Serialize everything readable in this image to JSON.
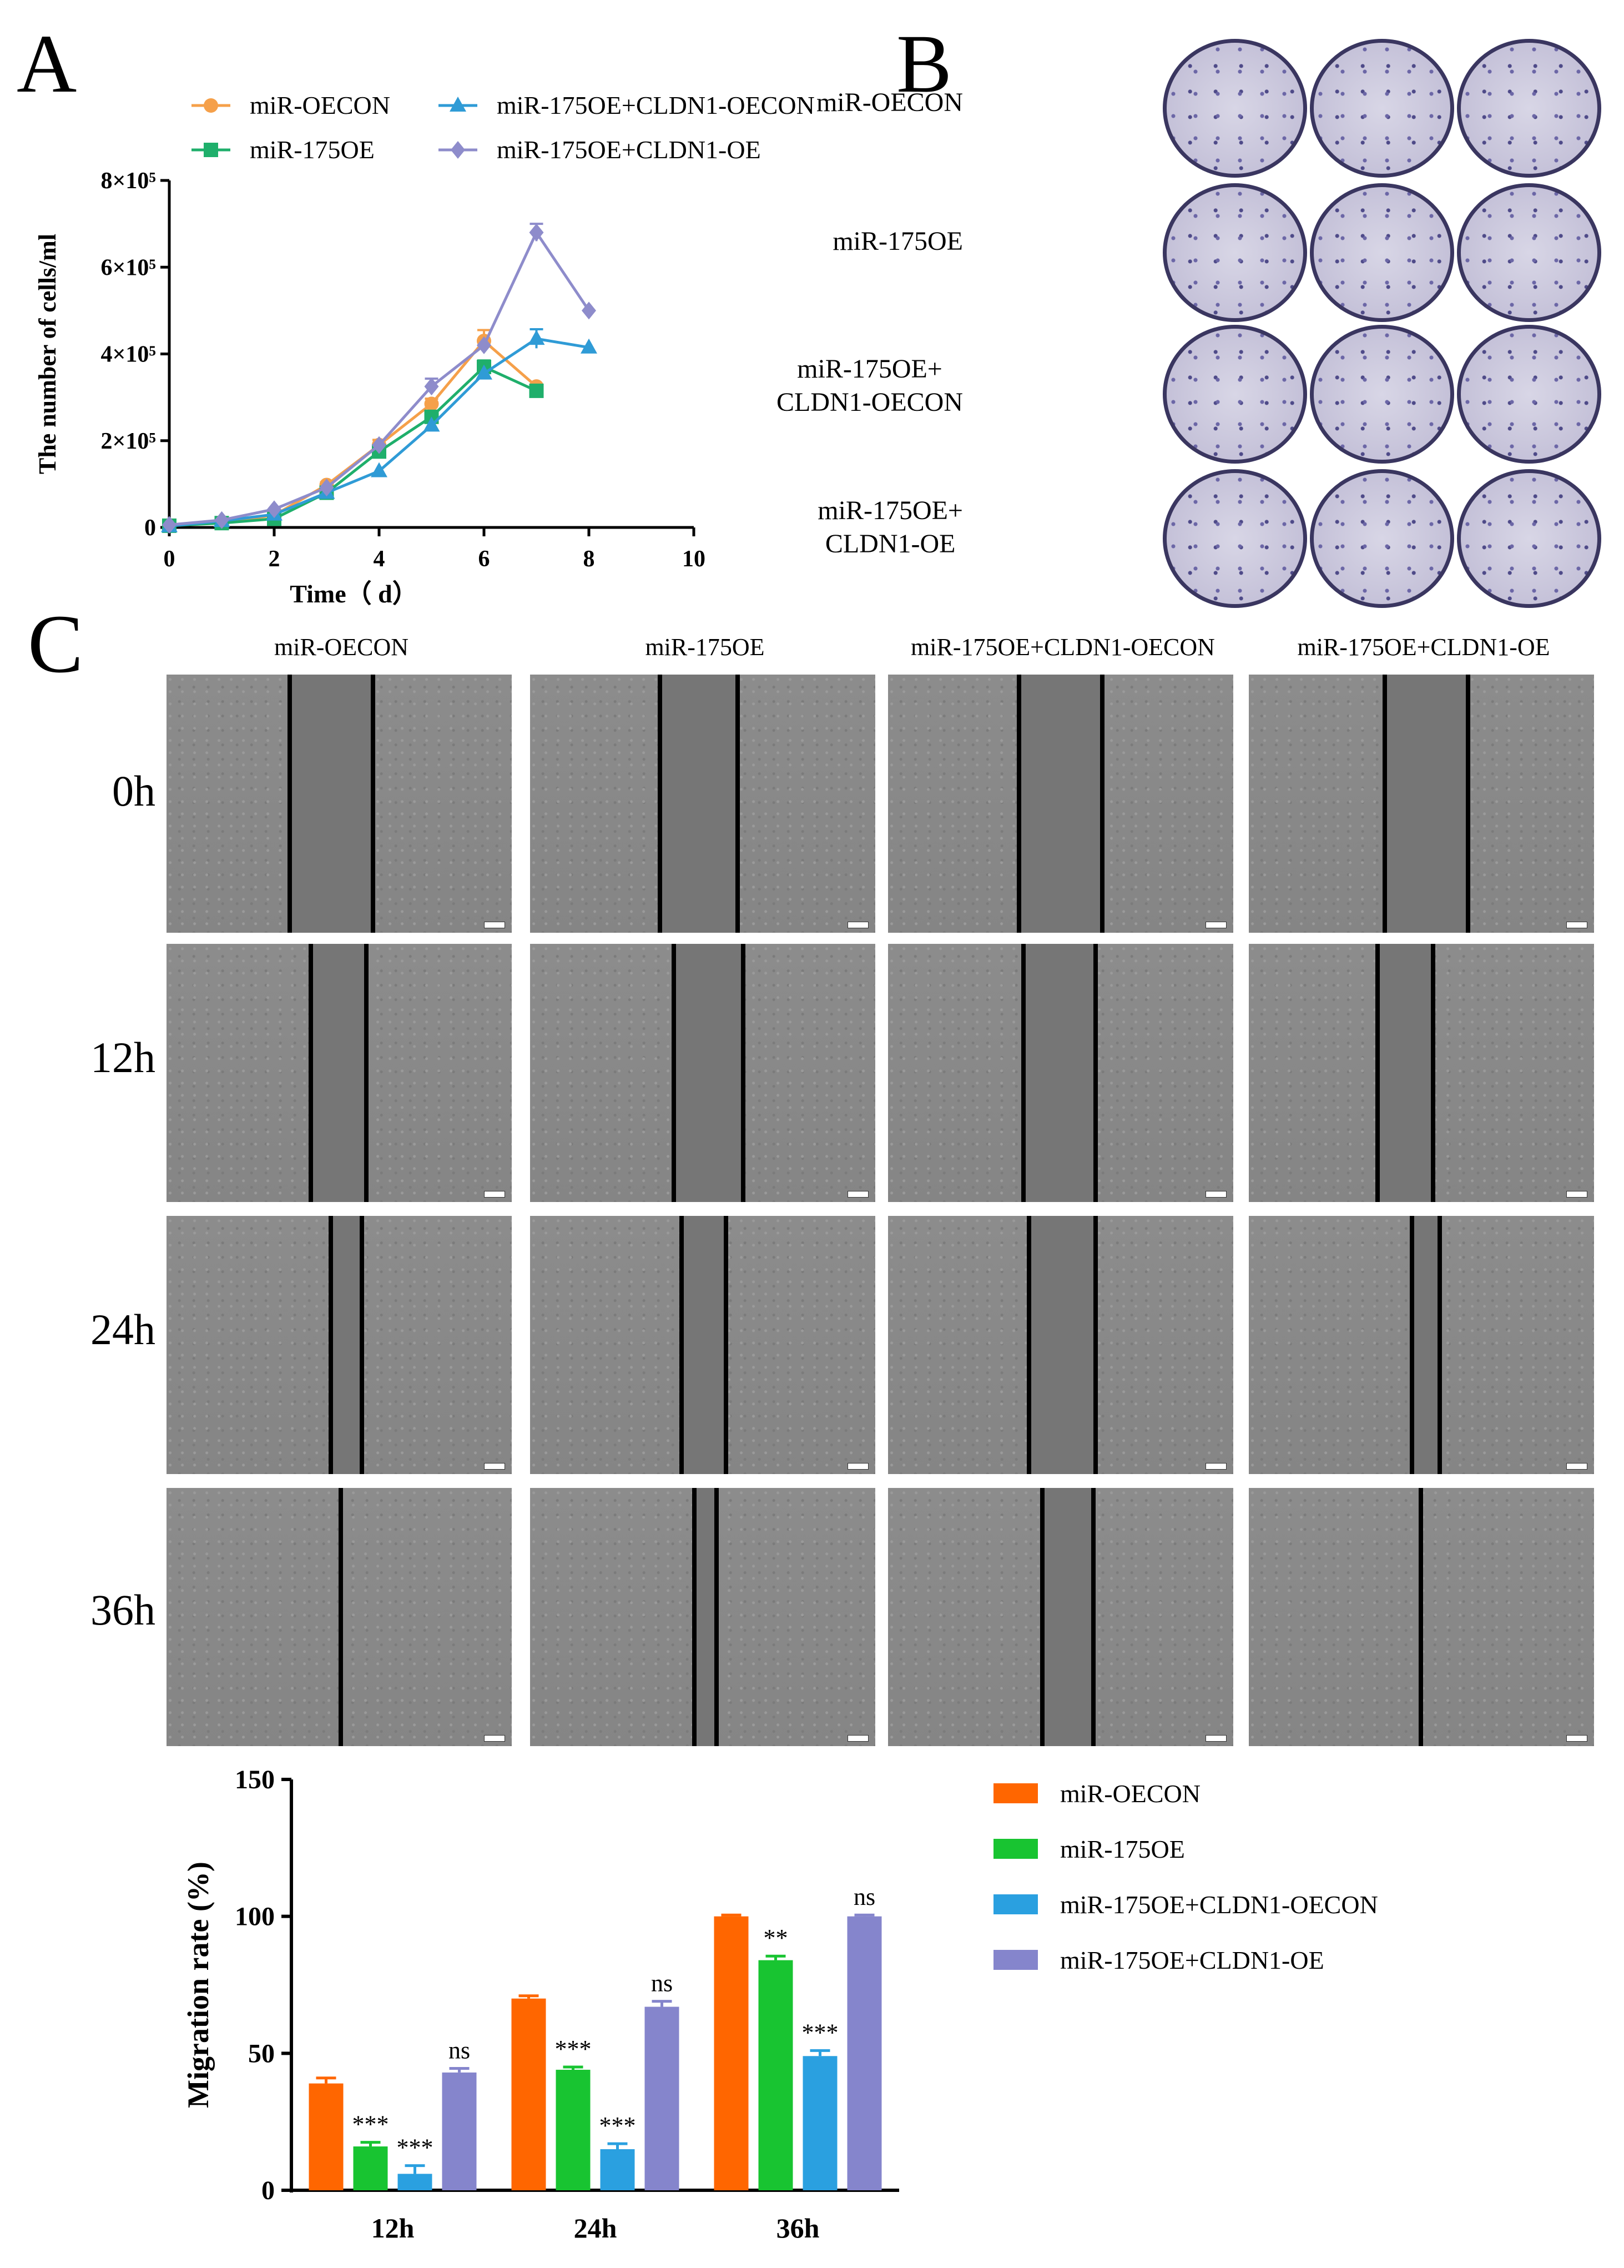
{
  "panels": {
    "a_letter": "A",
    "b_letter": "B",
    "c_letter": "C"
  },
  "colors": {
    "orange": "#F5A04A",
    "green": "#1FAF6B",
    "blue": "#2F9BD6",
    "purple": "#8E8CCB",
    "bar_orange": "#FF6600",
    "bar_green": "#18C431",
    "bar_blue": "#2AA0E0",
    "bar_purple": "#8585CC"
  },
  "chart_data": [
    {
      "type": "line",
      "xlabel": "Time（ d）",
      "ylabel": "The number of cells/ml",
      "xlim": [
        0,
        10
      ],
      "ylim": [
        0,
        800000
      ],
      "x_ticks": [
        "0",
        "2",
        "4",
        "6",
        "8",
        "10"
      ],
      "y_ticks": [
        "0",
        "2×10⁵",
        "4×10⁵",
        "6×10⁵",
        "8×10⁵"
      ],
      "series": [
        {
          "name": "miR-OECON",
          "marker": "circle",
          "color": "#F5A04A",
          "x": [
            0,
            1,
            2,
            3,
            4,
            5,
            6,
            7
          ],
          "y": [
            5000,
            12000,
            28000,
            98000,
            190000,
            285000,
            430000,
            325000
          ],
          "err": [
            0,
            0,
            0,
            6000,
            12000,
            12000,
            25000,
            0
          ]
        },
        {
          "name": "miR-175OE",
          "marker": "square",
          "color": "#1FAF6B",
          "x": [
            0,
            1,
            2,
            3,
            4,
            5,
            6,
            7
          ],
          "y": [
            4000,
            10000,
            20000,
            80000,
            175000,
            255000,
            370000,
            315000
          ],
          "err": [
            0,
            0,
            0,
            0,
            0,
            0,
            15000,
            0
          ]
        },
        {
          "name": "miR-175OE+CLDN1-OECON",
          "marker": "triangle",
          "color": "#2F9BD6",
          "x": [
            0,
            1,
            2,
            3,
            4,
            5,
            6,
            7,
            8
          ],
          "y": [
            3000,
            15000,
            30000,
            80000,
            130000,
            235000,
            355000,
            435000,
            415000
          ],
          "err": [
            0,
            0,
            0,
            0,
            0,
            0,
            0,
            22000,
            0
          ]
        },
        {
          "name": "miR-175OE+CLDN1-OE",
          "marker": "diamond",
          "color": "#8E8CCB",
          "x": [
            0,
            1,
            2,
            3,
            4,
            5,
            6,
            7,
            8
          ],
          "y": [
            6000,
            17000,
            42000,
            92000,
            190000,
            325000,
            420000,
            680000,
            500000
          ],
          "err": [
            0,
            0,
            0,
            0,
            0,
            18000,
            0,
            20000,
            0
          ]
        }
      ]
    },
    {
      "type": "bar",
      "categories": [
        "12h",
        "24h",
        "36h"
      ],
      "ylabel": "Migration rate (%)",
      "ylim": [
        0,
        150
      ],
      "y_ticks": [
        "0",
        "50",
        "100",
        "150"
      ],
      "series": [
        {
          "name": "miR-OECON",
          "color": "#FF6600",
          "values": [
            39,
            70,
            100
          ],
          "err": [
            2,
            1,
            0.5
          ],
          "sig": [
            "",
            "",
            ""
          ]
        },
        {
          "name": "miR-175OE",
          "color": "#18C431",
          "values": [
            16,
            44,
            84
          ],
          "err": [
            1.5,
            1,
            1.5
          ],
          "sig": [
            "***",
            "***",
            "**"
          ]
        },
        {
          "name": "miR-175OE+CLDN1-OECON",
          "color": "#2AA0E0",
          "values": [
            6,
            15,
            49
          ],
          "err": [
            3,
            2,
            2
          ],
          "sig": [
            "***",
            "***",
            "***"
          ]
        },
        {
          "name": "miR-175OE+CLDN1-OE",
          "color": "#8585CC",
          "values": [
            43,
            67,
            100
          ],
          "err": [
            1.5,
            2,
            0.5
          ],
          "sig": [
            "ns",
            "ns",
            "ns"
          ]
        }
      ]
    }
  ],
  "panel_b": {
    "row_labels": [
      [
        "miR-OECON"
      ],
      [
        "miR-175OE"
      ],
      [
        "miR-175OE+",
        "CLDN1-OECON"
      ],
      [
        "miR-175OE+",
        "CLDN1-OE"
      ]
    ]
  },
  "panel_c": {
    "column_labels": [
      "miR-OECON",
      "miR-175OE",
      "miR-175OE+CLDN1-OECON",
      "miR-175OE+CLDN1-OE"
    ],
    "row_labels": [
      "0h",
      "12h",
      "24h",
      "36h"
    ]
  }
}
